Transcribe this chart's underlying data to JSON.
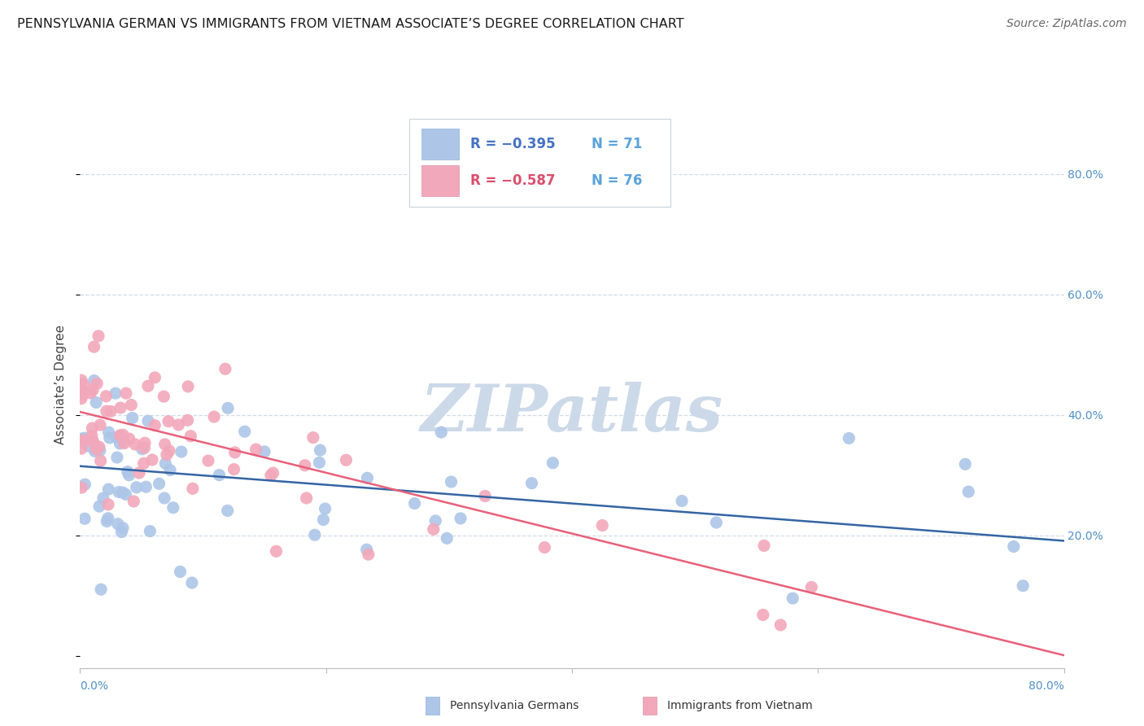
{
  "title": "PENNSYLVANIA GERMAN VS IMMIGRANTS FROM VIETNAM ASSOCIATE’S DEGREE CORRELATION CHART",
  "source": "Source: ZipAtlas.com",
  "ylabel": "Associate’s Degree",
  "right_yticks": [
    "80.0%",
    "60.0%",
    "40.0%",
    "20.0%"
  ],
  "right_ytick_vals": [
    0.8,
    0.6,
    0.4,
    0.2
  ],
  "xlim": [
    0.0,
    0.8
  ],
  "ylim": [
    -0.02,
    0.92
  ],
  "legend_r1": "R = −0.395",
  "legend_n1": "N = 71",
  "legend_r2": "R = −0.587",
  "legend_n2": "N = 76",
  "scatter_blue_color": "#adc6e8",
  "scatter_pink_color": "#f2a8bb",
  "line_blue_color": "#3465a4",
  "line_pink_color": "#e8607a",
  "legend_blue_fill": "#adc6e8",
  "legend_pink_fill": "#f2a8bb",
  "legend_text_r_blue": "#4472c4",
  "legend_text_r_pink": "#d94f6e",
  "legend_text_n": "#5ba3d9",
  "watermark_color": "#ccd9e8",
  "grid_color": "#d0dce8",
  "bg_color": "#ffffff",
  "title_fontsize": 11.5,
  "axis_label_fontsize": 11,
  "tick_fontsize": 10,
  "legend_fontsize": 12,
  "source_fontsize": 10,
  "blue_slope": -0.155,
  "blue_intercept": 0.315,
  "pink_slope": -0.505,
  "pink_intercept": 0.405,
  "blue_N": 71,
  "pink_N": 76
}
